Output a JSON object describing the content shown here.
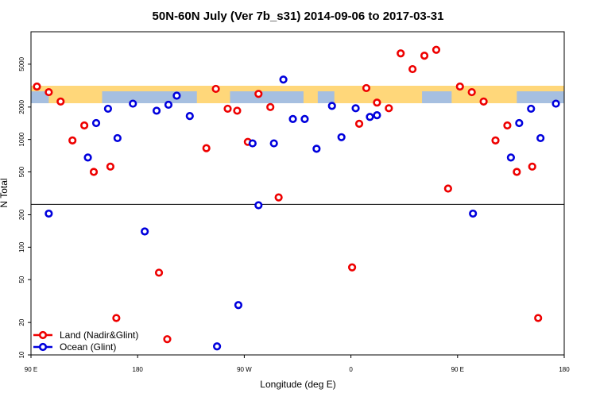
{
  "chart_data": {
    "type": "scatter",
    "title": "50N-60N July (Ver 7b_s31)   2014-09-06 to 2017-03-31",
    "xlabel": "Longitude (deg E)",
    "ylabel": "N Total",
    "xlim": [
      90,
      540
    ],
    "ylim_log": [
      10,
      10000
    ],
    "y_scale": "log",
    "x_ticks": [
      {
        "value": 90,
        "label": "90 E"
      },
      {
        "value": 180,
        "label": "180"
      },
      {
        "value": 270,
        "label": "90 W"
      },
      {
        "value": 360,
        "label": "0"
      },
      {
        "value": 450,
        "label": "90 E"
      },
      {
        "value": 540,
        "label": "180"
      }
    ],
    "y_ticks": [
      {
        "value": 10,
        "label": "10"
      },
      {
        "value": 20,
        "label": "20"
      },
      {
        "value": 50,
        "label": "50"
      },
      {
        "value": 100,
        "label": "100"
      },
      {
        "value": 200,
        "label": "200"
      },
      {
        "value": 500,
        "label": "500"
      },
      {
        "value": 1000,
        "label": "1000"
      },
      {
        "value": 2000,
        "label": "2000"
      },
      {
        "value": 5000,
        "label": "5000"
      }
    ],
    "reference_line_y": 250,
    "map_band": {
      "latitude_range": "50N-60N",
      "land_color": "#ffd77a",
      "ocean_color": "#a6bfe0",
      "y_range": [
        1900,
        2800
      ]
    },
    "series": [
      {
        "name": "Land (Nadir&Glint)",
        "color": "#ee0000",
        "points": [
          {
            "x": 95,
            "y": 3100
          },
          {
            "x": 105,
            "y": 2750
          },
          {
            "x": 115,
            "y": 2250
          },
          {
            "x": 125,
            "y": 980
          },
          {
            "x": 135,
            "y": 1350
          },
          {
            "x": 143,
            "y": 500
          },
          {
            "x": 157,
            "y": 560
          },
          {
            "x": 162,
            "y": 22
          },
          {
            "x": 198,
            "y": 58
          },
          {
            "x": 205,
            "y": 14
          },
          {
            "x": 238,
            "y": 830
          },
          {
            "x": 246,
            "y": 2950
          },
          {
            "x": 256,
            "y": 1930
          },
          {
            "x": 264,
            "y": 1850
          },
          {
            "x": 273,
            "y": 950
          },
          {
            "x": 282,
            "y": 2650
          },
          {
            "x": 292,
            "y": 2000
          },
          {
            "x": 299,
            "y": 290
          },
          {
            "x": 361,
            "y": 65
          },
          {
            "x": 367,
            "y": 1400
          },
          {
            "x": 373,
            "y": 3000
          },
          {
            "x": 382,
            "y": 2200
          },
          {
            "x": 392,
            "y": 1950
          },
          {
            "x": 402,
            "y": 6300
          },
          {
            "x": 412,
            "y": 4500
          },
          {
            "x": 422,
            "y": 6000
          },
          {
            "x": 432,
            "y": 6800
          },
          {
            "x": 442,
            "y": 350
          },
          {
            "x": 452,
            "y": 3100
          },
          {
            "x": 462,
            "y": 2750
          },
          {
            "x": 472,
            "y": 2250
          },
          {
            "x": 482,
            "y": 980
          },
          {
            "x": 492,
            "y": 1350
          },
          {
            "x": 500,
            "y": 500
          },
          {
            "x": 513,
            "y": 560
          },
          {
            "x": 518,
            "y": 22
          }
        ]
      },
      {
        "name": "Ocean (Glint)",
        "color": "#0000dd",
        "points": [
          {
            "x": 105,
            "y": 205
          },
          {
            "x": 138,
            "y": 680
          },
          {
            "x": 145,
            "y": 1420
          },
          {
            "x": 155,
            "y": 1930
          },
          {
            "x": 163,
            "y": 1030
          },
          {
            "x": 176,
            "y": 2150
          },
          {
            "x": 186,
            "y": 140
          },
          {
            "x": 196,
            "y": 1850
          },
          {
            "x": 206,
            "y": 2100
          },
          {
            "x": 213,
            "y": 2550
          },
          {
            "x": 224,
            "y": 1650
          },
          {
            "x": 247,
            "y": 12
          },
          {
            "x": 265,
            "y": 29
          },
          {
            "x": 277,
            "y": 920
          },
          {
            "x": 282,
            "y": 245
          },
          {
            "x": 295,
            "y": 920
          },
          {
            "x": 303,
            "y": 3600
          },
          {
            "x": 311,
            "y": 1550
          },
          {
            "x": 321,
            "y": 1550
          },
          {
            "x": 331,
            "y": 820
          },
          {
            "x": 344,
            "y": 2050
          },
          {
            "x": 352,
            "y": 1050
          },
          {
            "x": 364,
            "y": 1950
          },
          {
            "x": 376,
            "y": 1620
          },
          {
            "x": 382,
            "y": 1680
          },
          {
            "x": 463,
            "y": 205
          },
          {
            "x": 495,
            "y": 680
          },
          {
            "x": 502,
            "y": 1420
          },
          {
            "x": 512,
            "y": 1930
          },
          {
            "x": 520,
            "y": 1030
          },
          {
            "x": 533,
            "y": 2150
          }
        ]
      }
    ],
    "legend_position": "bottom-left"
  }
}
